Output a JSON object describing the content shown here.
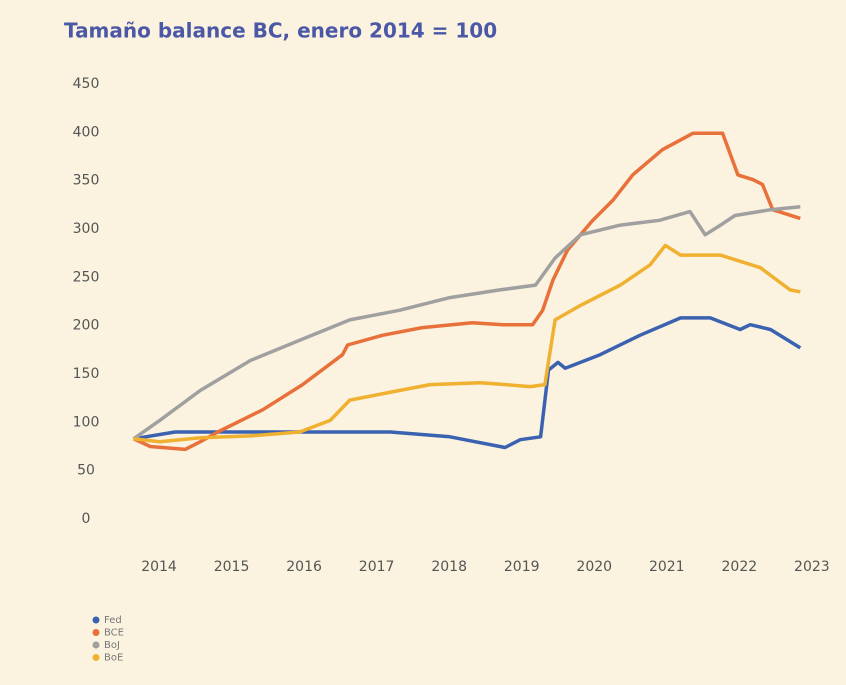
{
  "chart_data": {
    "type": "line",
    "title": "Tamaño balance BC, enero 2014 = 100",
    "xlim": [
      2013.6,
      2023.25
    ],
    "xticks": [
      2014,
      2015,
      2016,
      2017,
      2018,
      2019,
      2020,
      2021,
      2022,
      2023
    ],
    "ylim": [
      0,
      450
    ],
    "yticks": [
      0,
      50,
      100,
      150,
      200,
      250,
      300,
      350,
      400,
      450
    ],
    "grid": false,
    "legend": "bottom-left",
    "series": [
      {
        "name": "Fed",
        "color": "#3a62b0",
        "x": [
          2013.65,
          2014.22,
          2017.19,
          2018.01,
          2018.77,
          2018.98,
          2019.26,
          2019.37,
          2019.5,
          2019.6,
          2020.08,
          2020.63,
          2021.19,
          2021.6,
          2022.01,
          2022.15,
          2022.43,
          2022.84
        ],
        "values": [
          83,
          90,
          90,
          85,
          74,
          82,
          85,
          154,
          162,
          156,
          170,
          190,
          208,
          208,
          196,
          201,
          196,
          177
        ]
      },
      {
        "name": "BCE",
        "color": "#e8703a",
        "x": [
          2013.65,
          2013.88,
          2014.36,
          2014.57,
          2014.81,
          2015.43,
          2015.98,
          2016.53,
          2016.6,
          2017.08,
          2017.63,
          2018.32,
          2018.74,
          2019.15,
          2019.29,
          2019.43,
          2019.63,
          2019.98,
          2020.26,
          2020.53,
          2020.94,
          2021.36,
          2021.77,
          2021.98,
          2022.19,
          2022.32,
          2022.46,
          2022.84
        ],
        "values": [
          83,
          75,
          72,
          80,
          90,
          113,
          139,
          170,
          180,
          190,
          198,
          203,
          201,
          201,
          216,
          247,
          278,
          309,
          330,
          356,
          382,
          399,
          399,
          356,
          351,
          346,
          320,
          311
        ]
      },
      {
        "name": "BoJ",
        "color": "#a0a0a0",
        "x": [
          2013.65,
          2014.01,
          2014.57,
          2015.26,
          2015.94,
          2016.63,
          2017.32,
          2018.01,
          2018.7,
          2019.19,
          2019.46,
          2019.81,
          2020.36,
          2020.9,
          2021.32,
          2021.53,
          2021.74,
          2021.94,
          2022.43,
          2022.84
        ],
        "values": [
          83,
          102,
          133,
          164,
          185,
          206,
          216,
          229,
          237,
          242,
          270,
          294,
          304,
          309,
          318,
          294,
          304,
          314,
          320,
          323
        ]
      },
      {
        "name": "BoE",
        "color": "#f0b030",
        "x": [
          2013.65,
          2014.01,
          2014.57,
          2015.26,
          2015.94,
          2016.36,
          2016.63,
          2017.32,
          2017.74,
          2018.43,
          2019.12,
          2019.32,
          2019.46,
          2019.81,
          2020.36,
          2020.77,
          2020.98,
          2021.19,
          2021.74,
          2022.29,
          2022.7,
          2022.84
        ],
        "values": [
          83,
          80,
          84,
          86,
          90,
          102,
          123,
          133,
          139,
          141,
          137,
          139,
          206,
          221,
          242,
          263,
          283,
          273,
          273,
          260,
          237,
          235
        ]
      }
    ]
  }
}
